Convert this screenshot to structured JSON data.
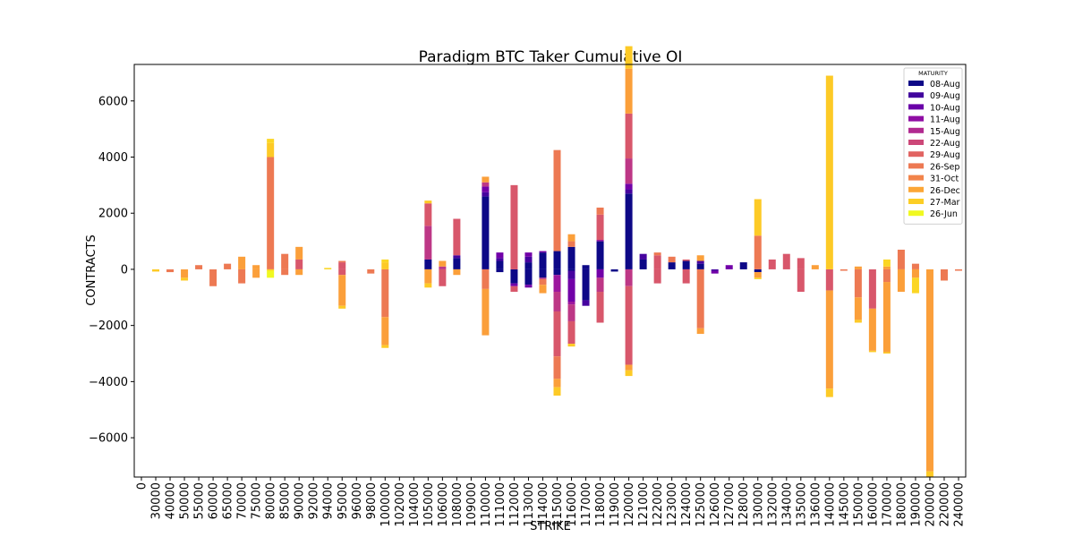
{
  "chart_data": {
    "type": "bar",
    "stacked": true,
    "title": "Paradigm BTC Taker Cumulative OI",
    "xlabel": "STRIKE",
    "ylabel": "CONTRACTS",
    "ylim": [
      -7400,
      7300
    ],
    "yticks": [
      -6000,
      -4000,
      -2000,
      0,
      2000,
      4000,
      6000
    ],
    "legend_title": "MATURITY",
    "legend_position": "top-right",
    "categories": [
      "0",
      "30000",
      "40000",
      "50000",
      "55000",
      "60000",
      "65000",
      "70000",
      "75000",
      "80000",
      "85000",
      "90000",
      "92000",
      "94000",
      "95000",
      "96000",
      "98000",
      "100000",
      "102000",
      "104000",
      "105000",
      "106000",
      "108000",
      "109000",
      "110000",
      "111000",
      "112000",
      "113000",
      "114000",
      "115000",
      "116000",
      "117000",
      "118000",
      "119000",
      "120000",
      "121000",
      "122000",
      "123000",
      "124000",
      "125000",
      "126000",
      "127000",
      "128000",
      "130000",
      "132000",
      "134000",
      "135000",
      "136000",
      "140000",
      "145000",
      "150000",
      "160000",
      "170000",
      "180000",
      "190000",
      "200000",
      "220000",
      "240000"
    ],
    "series": [
      {
        "name": "08-Aug",
        "color": "#0d0887",
        "pos": {
          "20": 350,
          "22": 400,
          "24": 2600,
          "25": 300,
          "26": 0,
          "27": 250,
          "28": 600,
          "29": 650,
          "30": 800,
          "31": 150,
          "32": 1000,
          "34": 2700,
          "35": 350,
          "37": 250,
          "38": 300,
          "39": 200,
          "40": 0,
          "42": 250,
          "43": 0
        },
        "neg": {
          "24": 0,
          "25": -100,
          "26": -500,
          "27": -550,
          "28": -300,
          "29": -200,
          "30": -50,
          "31": -1100,
          "33": -80,
          "43": -100
        }
      },
      {
        "name": "09-Aug",
        "color": "#46039f",
        "pos": {
          "22": 100,
          "24": 150,
          "25": 100,
          "27": 200,
          "30": 0,
          "34": 150,
          "35": 200,
          "37": 0,
          "39": 100
        },
        "neg": {
          "30": -300,
          "31": -200,
          "40": -50
        }
      },
      {
        "name": "10-Aug",
        "color": "#7201a8",
        "pos": {
          "24": 200,
          "25": 200,
          "27": 150,
          "28": 50,
          "34": 200,
          "41": 150
        },
        "neg": {
          "26": -100,
          "27": -100,
          "30": -800,
          "32": -300,
          "40": -100
        }
      },
      {
        "name": "11-Aug",
        "color": "#9c179e",
        "pos": {
          "29": 0,
          "32": 50,
          "34": 0
        },
        "neg": {
          "29": -600,
          "30": -100
        }
      },
      {
        "name": "15-Aug",
        "color": "#bd3786",
        "pos": {
          "20": 1200,
          "21": 100,
          "24": 150,
          "28": 0,
          "34": 900
        },
        "neg": {
          "28": -50,
          "29": -700,
          "30": -600,
          "32": -500,
          "34": -600
        }
      },
      {
        "name": "22-Aug",
        "color": "#d8576b",
        "pos": {
          "11": 350,
          "14": 250,
          "20": 800,
          "22": 1300,
          "26": 3000,
          "28": 0,
          "32": 900,
          "34": 1600,
          "36": 500,
          "38": 50,
          "44": 350,
          "45": 550,
          "46": 400
        },
        "neg": {
          "14": -200,
          "21": -600,
          "26": -200,
          "29": -1600,
          "30": -800,
          "32": -1100,
          "34": -2800,
          "36": -500,
          "38": -500,
          "46": -800,
          "48": -750,
          "51": -1400
        }
      },
      {
        "name": "26-Sep",
        "color": "#ed7953",
        "pos": {
          "4": 150,
          "6": 200,
          "7": 0,
          "9": 4000,
          "10": 550,
          "14": 50,
          "17": 0,
          "20": 0,
          "24": 0,
          "29": 3600,
          "30": 200,
          "32": 250,
          "36": 100,
          "37": 200,
          "39": 0,
          "43": 1200,
          "53": 700,
          "54": 200
        },
        "neg": {
          "1": 0,
          "2": -100,
          "5": -600,
          "7": -500,
          "10": -200,
          "16": -150,
          "17": -1700,
          "24": -700,
          "28": -200,
          "29": -800,
          "39": -2100,
          "49": -50,
          "50": -1000,
          "52": -450,
          "56": -400,
          "57": -50
        }
      },
      {
        "name": "31-Oct",
        "color": "#fb9f3a",
        "pos": {
          "7": 450,
          "8": 150,
          "11": 450,
          "21": 200,
          "24": 200,
          "30": 250,
          "34": 1600,
          "39": 200,
          "47": 150,
          "50": 100,
          "52": 100
        },
        "neg": {
          "3": -300,
          "8": -300,
          "11": -200,
          "14": -1100,
          "17": -1000,
          "20": -500,
          "22": -200,
          "24": -1650,
          "28": -300,
          "29": -300,
          "34": -200,
          "39": -200,
          "43": -200,
          "48": -3500,
          "50": -800,
          "51": -1500,
          "52": -2500,
          "53": -800,
          "54": -300,
          "55": -7200
        }
      },
      {
        "name": "26-Dec",
        "color": "#fdca26",
        "pos": {
          "9": 500,
          "17": 250,
          "20": 100,
          "34": 800,
          "43": 1300,
          "48": 6900
        },
        "neg": {
          "1": -80,
          "3": -100,
          "14": -100,
          "17": -100,
          "20": -150,
          "29": -300,
          "30": -100,
          "34": -200,
          "48": -300,
          "50": -100,
          "51": -50,
          "52": -50,
          "55": -200
        }
      },
      {
        "name": "27-Mar",
        "color": "#fbd624",
        "pos": {
          "0": 0,
          "9": 150,
          "13": 50,
          "17": 100,
          "52": 250
        },
        "neg": {
          "9": -50,
          "43": -50,
          "54": -550
        }
      },
      {
        "name": "26-Jun",
        "color": "#f0f921",
        "pos": {
          "52": 0,
          "17": 0
        },
        "neg": {
          "9": -250
        }
      }
    ],
    "legend_labels": [
      "08-Aug",
      "09-Aug",
      "10-Aug",
      "11-Aug",
      "15-Aug",
      "22-Aug",
      "29-Aug",
      "26-Sep",
      "31-Oct",
      "26-Dec",
      "27-Mar",
      "26-Jun"
    ],
    "legend_colors": [
      "#0d0887",
      "#41049d",
      "#6a00a8",
      "#8f0da4",
      "#b12a90",
      "#cc4778",
      "#e16462",
      "#ed7953",
      "#f2844b",
      "#fca636",
      "#fcce25",
      "#f0f921"
    ]
  }
}
